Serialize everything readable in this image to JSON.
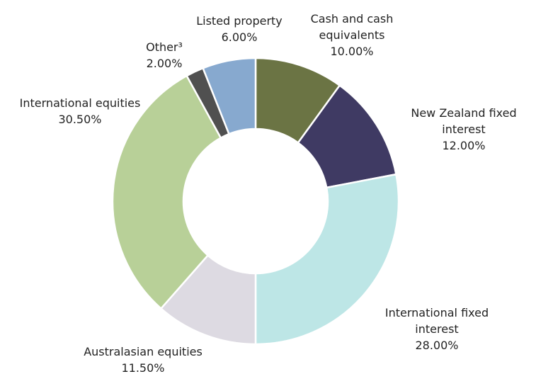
{
  "chart_data": {
    "type": "donut",
    "categories": [
      "Cash and cash equivalents",
      "New Zealand fixed interest",
      "International fixed interest",
      "Australasian equities",
      "International equities",
      "Other³",
      "Listed property"
    ],
    "values": [
      10,
      12,
      28,
      11.5,
      30.5,
      2,
      6
    ],
    "value_labels": [
      "10.00%",
      "12.00%",
      "28.00%",
      "11.50%",
      "30.50%",
      "2.00%",
      "6.00%"
    ],
    "colors": [
      "#6b7444",
      "#3f3a63",
      "#bde6e6",
      "#dddae2",
      "#b8d098",
      "#505050",
      "#87a9cf"
    ]
  }
}
